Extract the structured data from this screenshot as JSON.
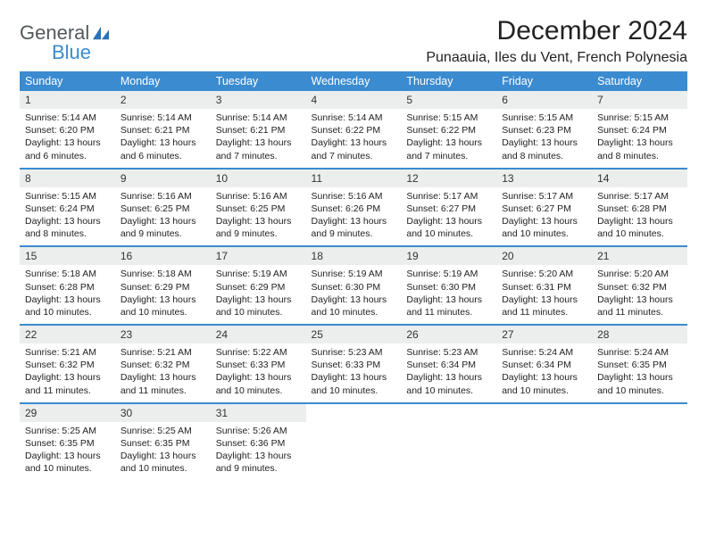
{
  "logo": {
    "text1": "General",
    "text2": "Blue"
  },
  "title": "December 2024",
  "location": "Punaauia, Iles du Vent, French Polynesia",
  "colors": {
    "header_bg": "#3b8bd0",
    "header_fg": "#ffffff",
    "daynum_bg": "#eceded",
    "rule": "#3b8bd0"
  },
  "days": [
    "Sunday",
    "Monday",
    "Tuesday",
    "Wednesday",
    "Thursday",
    "Friday",
    "Saturday"
  ],
  "weeks": [
    [
      {
        "n": "1",
        "sr": "Sunrise: 5:14 AM",
        "ss": "Sunset: 6:20 PM",
        "d1": "Daylight: 13 hours",
        "d2": "and 6 minutes."
      },
      {
        "n": "2",
        "sr": "Sunrise: 5:14 AM",
        "ss": "Sunset: 6:21 PM",
        "d1": "Daylight: 13 hours",
        "d2": "and 6 minutes."
      },
      {
        "n": "3",
        "sr": "Sunrise: 5:14 AM",
        "ss": "Sunset: 6:21 PM",
        "d1": "Daylight: 13 hours",
        "d2": "and 7 minutes."
      },
      {
        "n": "4",
        "sr": "Sunrise: 5:14 AM",
        "ss": "Sunset: 6:22 PM",
        "d1": "Daylight: 13 hours",
        "d2": "and 7 minutes."
      },
      {
        "n": "5",
        "sr": "Sunrise: 5:15 AM",
        "ss": "Sunset: 6:22 PM",
        "d1": "Daylight: 13 hours",
        "d2": "and 7 minutes."
      },
      {
        "n": "6",
        "sr": "Sunrise: 5:15 AM",
        "ss": "Sunset: 6:23 PM",
        "d1": "Daylight: 13 hours",
        "d2": "and 8 minutes."
      },
      {
        "n": "7",
        "sr": "Sunrise: 5:15 AM",
        "ss": "Sunset: 6:24 PM",
        "d1": "Daylight: 13 hours",
        "d2": "and 8 minutes."
      }
    ],
    [
      {
        "n": "8",
        "sr": "Sunrise: 5:15 AM",
        "ss": "Sunset: 6:24 PM",
        "d1": "Daylight: 13 hours",
        "d2": "and 8 minutes."
      },
      {
        "n": "9",
        "sr": "Sunrise: 5:16 AM",
        "ss": "Sunset: 6:25 PM",
        "d1": "Daylight: 13 hours",
        "d2": "and 9 minutes."
      },
      {
        "n": "10",
        "sr": "Sunrise: 5:16 AM",
        "ss": "Sunset: 6:25 PM",
        "d1": "Daylight: 13 hours",
        "d2": "and 9 minutes."
      },
      {
        "n": "11",
        "sr": "Sunrise: 5:16 AM",
        "ss": "Sunset: 6:26 PM",
        "d1": "Daylight: 13 hours",
        "d2": "and 9 minutes."
      },
      {
        "n": "12",
        "sr": "Sunrise: 5:17 AM",
        "ss": "Sunset: 6:27 PM",
        "d1": "Daylight: 13 hours",
        "d2": "and 10 minutes."
      },
      {
        "n": "13",
        "sr": "Sunrise: 5:17 AM",
        "ss": "Sunset: 6:27 PM",
        "d1": "Daylight: 13 hours",
        "d2": "and 10 minutes."
      },
      {
        "n": "14",
        "sr": "Sunrise: 5:17 AM",
        "ss": "Sunset: 6:28 PM",
        "d1": "Daylight: 13 hours",
        "d2": "and 10 minutes."
      }
    ],
    [
      {
        "n": "15",
        "sr": "Sunrise: 5:18 AM",
        "ss": "Sunset: 6:28 PM",
        "d1": "Daylight: 13 hours",
        "d2": "and 10 minutes."
      },
      {
        "n": "16",
        "sr": "Sunrise: 5:18 AM",
        "ss": "Sunset: 6:29 PM",
        "d1": "Daylight: 13 hours",
        "d2": "and 10 minutes."
      },
      {
        "n": "17",
        "sr": "Sunrise: 5:19 AM",
        "ss": "Sunset: 6:29 PM",
        "d1": "Daylight: 13 hours",
        "d2": "and 10 minutes."
      },
      {
        "n": "18",
        "sr": "Sunrise: 5:19 AM",
        "ss": "Sunset: 6:30 PM",
        "d1": "Daylight: 13 hours",
        "d2": "and 10 minutes."
      },
      {
        "n": "19",
        "sr": "Sunrise: 5:19 AM",
        "ss": "Sunset: 6:30 PM",
        "d1": "Daylight: 13 hours",
        "d2": "and 11 minutes."
      },
      {
        "n": "20",
        "sr": "Sunrise: 5:20 AM",
        "ss": "Sunset: 6:31 PM",
        "d1": "Daylight: 13 hours",
        "d2": "and 11 minutes."
      },
      {
        "n": "21",
        "sr": "Sunrise: 5:20 AM",
        "ss": "Sunset: 6:32 PM",
        "d1": "Daylight: 13 hours",
        "d2": "and 11 minutes."
      }
    ],
    [
      {
        "n": "22",
        "sr": "Sunrise: 5:21 AM",
        "ss": "Sunset: 6:32 PM",
        "d1": "Daylight: 13 hours",
        "d2": "and 11 minutes."
      },
      {
        "n": "23",
        "sr": "Sunrise: 5:21 AM",
        "ss": "Sunset: 6:32 PM",
        "d1": "Daylight: 13 hours",
        "d2": "and 11 minutes."
      },
      {
        "n": "24",
        "sr": "Sunrise: 5:22 AM",
        "ss": "Sunset: 6:33 PM",
        "d1": "Daylight: 13 hours",
        "d2": "and 10 minutes."
      },
      {
        "n": "25",
        "sr": "Sunrise: 5:23 AM",
        "ss": "Sunset: 6:33 PM",
        "d1": "Daylight: 13 hours",
        "d2": "and 10 minutes."
      },
      {
        "n": "26",
        "sr": "Sunrise: 5:23 AM",
        "ss": "Sunset: 6:34 PM",
        "d1": "Daylight: 13 hours",
        "d2": "and 10 minutes."
      },
      {
        "n": "27",
        "sr": "Sunrise: 5:24 AM",
        "ss": "Sunset: 6:34 PM",
        "d1": "Daylight: 13 hours",
        "d2": "and 10 minutes."
      },
      {
        "n": "28",
        "sr": "Sunrise: 5:24 AM",
        "ss": "Sunset: 6:35 PM",
        "d1": "Daylight: 13 hours",
        "d2": "and 10 minutes."
      }
    ],
    [
      {
        "n": "29",
        "sr": "Sunrise: 5:25 AM",
        "ss": "Sunset: 6:35 PM",
        "d1": "Daylight: 13 hours",
        "d2": "and 10 minutes."
      },
      {
        "n": "30",
        "sr": "Sunrise: 5:25 AM",
        "ss": "Sunset: 6:35 PM",
        "d1": "Daylight: 13 hours",
        "d2": "and 10 minutes."
      },
      {
        "n": "31",
        "sr": "Sunrise: 5:26 AM",
        "ss": "Sunset: 6:36 PM",
        "d1": "Daylight: 13 hours",
        "d2": "and 9 minutes."
      },
      null,
      null,
      null,
      null
    ]
  ]
}
